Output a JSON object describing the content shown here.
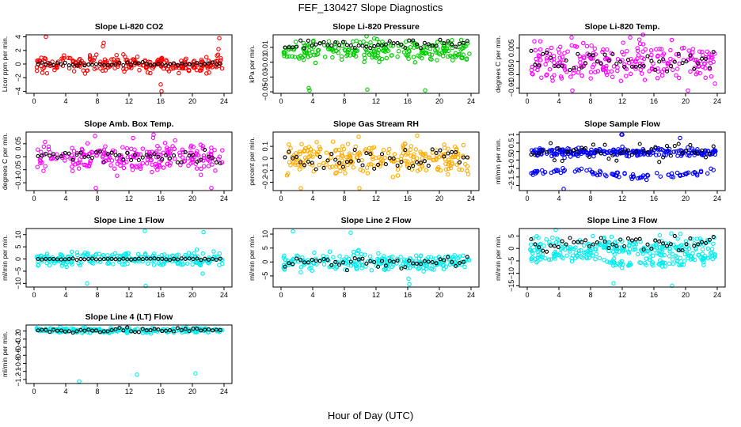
{
  "figure": {
    "title": "FEF_130427  Slope Diagnostics",
    "xlabel": "Hour of Day (UTC)"
  },
  "chart_data": [
    {
      "id": "co2",
      "type": "scatter",
      "title": "Slope Li-820 CO2",
      "ylabel": "Licor ppm per min.",
      "xlim": [
        0,
        24
      ],
      "xticks": [
        0,
        4,
        8,
        12,
        16,
        20,
        24
      ],
      "ylim": [
        -4.3,
        4.3
      ],
      "yticks": [
        -4,
        -2,
        0,
        2,
        4
      ],
      "color": "#ff0000",
      "main_center": 0.0,
      "main_spread": 0.6,
      "outlier_values": [
        4.0,
        3.1,
        -4.0,
        3.8,
        2.6,
        -3.0,
        2.2
      ],
      "dark_center": 0.0,
      "dark_spread": 0.12
    },
    {
      "id": "pressure",
      "type": "scatter",
      "title": "Slope Li-820 Pressure",
      "ylabel": "kPa per min.",
      "xlim": [
        0,
        24
      ],
      "xticks": [
        0,
        4,
        8,
        12,
        16,
        20,
        24
      ],
      "ylim": [
        -0.052,
        0.027
      ],
      "yticks": [
        -0.05,
        -0.03,
        -0.01,
        0.01
      ],
      "color": "#00cc00",
      "main_center": 0.005,
      "main_spread": 0.007,
      "outlier_values": [
        -0.048,
        -0.047,
        -0.048,
        -0.045,
        0.025
      ],
      "dark_center": 0.013,
      "dark_spread": 0.004
    },
    {
      "id": "temp",
      "type": "scatter",
      "title": "Slope Li-820 Temp.",
      "ylabel": "degrees C per min.",
      "xlim": [
        0,
        24
      ],
      "xticks": [
        0,
        4,
        8,
        12,
        16,
        20,
        24
      ],
      "ylim": [
        -0.012,
        0.01
      ],
      "yticks": [
        -0.01,
        -0.005,
        0,
        0.005
      ],
      "color": "#ff00ff",
      "main_center": 0.0,
      "main_spread": 0.0035,
      "outlier_values": [
        -0.011,
        0.009,
        -0.011,
        0.009
      ],
      "dark_center": 0.0,
      "dark_spread": 0.002
    },
    {
      "id": "ambbox",
      "type": "scatter",
      "title": "Slope Amb. Box Temp.",
      "ylabel": "degrees C per min.",
      "xlim": [
        0,
        24
      ],
      "xticks": [
        0,
        4,
        8,
        12,
        16,
        20,
        24
      ],
      "ylim": [
        -0.13,
        0.095
      ],
      "yticks": [
        -0.1,
        -0.05,
        0,
        0.05
      ],
      "color": "#ff00ff",
      "main_center": 0.0,
      "main_spread": 0.028,
      "outlier_values": [
        -0.12,
        0.085,
        -0.12,
        0.08
      ],
      "dark_center": 0.005,
      "dark_spread": 0.015
    },
    {
      "id": "rh",
      "type": "scatter",
      "title": "Slope Gas Stream RH",
      "ylabel": "percent per min.",
      "xlim": [
        0,
        24
      ],
      "xticks": [
        0,
        4,
        8,
        12,
        16,
        20,
        24
      ],
      "ylim": [
        -0.27,
        0.22
      ],
      "yticks": [
        -0.2,
        -0.1,
        0,
        0.1
      ],
      "color": "#ffaa00",
      "main_center": 0.0,
      "main_spread": 0.06,
      "outlier_values": [
        -0.25,
        0.19,
        -0.25,
        0.18
      ],
      "dark_center": 0.0,
      "dark_spread": 0.05
    },
    {
      "id": "sample",
      "type": "scatter",
      "title": "Slope Sample Flow",
      "ylabel": "ml/min per min.",
      "xlim": [
        0,
        24
      ],
      "xticks": [
        0,
        4,
        8,
        12,
        16,
        20,
        24
      ],
      "ylim": [
        -2.3,
        1.15
      ],
      "yticks": [
        -2,
        -1.5,
        -1,
        -0.5,
        0,
        0.5,
        1
      ],
      "color": "#0000ff",
      "main_center": -0.05,
      "main_spread": 0.12,
      "lower_band_center": -1.3,
      "lower_band_spread": 0.15,
      "outlier_values": [
        1.0,
        0.8,
        -2.2,
        1.0
      ],
      "dark_center": 0.0,
      "dark_spread": 0.3
    },
    {
      "id": "line1",
      "type": "scatter",
      "title": "Slope Line 1 Flow",
      "ylabel": "ml/min per min.",
      "xlim": [
        0,
        24
      ],
      "xticks": [
        0,
        4,
        8,
        12,
        16,
        20,
        24
      ],
      "ylim": [
        -11.5,
        12.5
      ],
      "yticks": [
        -10,
        -5,
        0,
        5,
        10
      ],
      "color": "#00eeee",
      "main_center": 0.0,
      "main_spread": 1.4,
      "outlier_values": [
        -11.0,
        11.0,
        -10.0,
        11.5,
        -6.0
      ],
      "dark_center": 0.0,
      "dark_spread": 0.15
    },
    {
      "id": "line2",
      "type": "scatter",
      "title": "Slope Line 2 Flow",
      "ylabel": "ml/min per min.",
      "xlim": [
        0,
        24
      ],
      "xticks": [
        0,
        4,
        8,
        12,
        16,
        20,
        24
      ],
      "ylim": [
        -9,
        12
      ],
      "yticks": [
        -5,
        0,
        5,
        10
      ],
      "color": "#00eeee",
      "main_center": 0.0,
      "main_spread": 1.5,
      "outlier_values": [
        -8.0,
        11.0,
        10.5,
        -6.0
      ],
      "dark_center": 0.0,
      "dark_spread": 1.2
    },
    {
      "id": "line3",
      "type": "scatter",
      "title": "Slope Line 3 Flow",
      "ylabel": "ml/min per min.",
      "xlim": [
        0,
        24
      ],
      "xticks": [
        0,
        4,
        8,
        12,
        16,
        20,
        24
      ],
      "ylim": [
        -15.5,
        8
      ],
      "yticks": [
        -15,
        -10,
        -5,
        0,
        5
      ],
      "color": "#00eeee",
      "main_center": 0.0,
      "main_spread": 2.2,
      "lower_band_center": -5,
      "lower_band_spread": 1.5,
      "outlier_values": [
        -15.0,
        7.5,
        -14.0,
        6.0
      ],
      "dark_center": 2.0,
      "dark_spread": 1.5
    },
    {
      "id": "line4",
      "type": "scatter",
      "title": "Slope Line 4 (LT) Flow",
      "ylabel": "ml/min per min.",
      "xlim": [
        0,
        24
      ],
      "xticks": [
        0,
        4,
        8,
        12,
        16,
        20,
        24
      ],
      "ylim": [
        -1.3,
        0.15
      ],
      "yticks": [
        -1.2,
        -1.0,
        -0.8,
        -0.6,
        -0.4,
        -0.2,
        0.0
      ],
      "color": "#00eeee",
      "main_center": 0.02,
      "main_spread": 0.03,
      "outlier_values": [
        -1.05,
        -1.25,
        -1.08
      ],
      "dark_center": 0.02,
      "dark_spread": 0.03
    }
  ]
}
